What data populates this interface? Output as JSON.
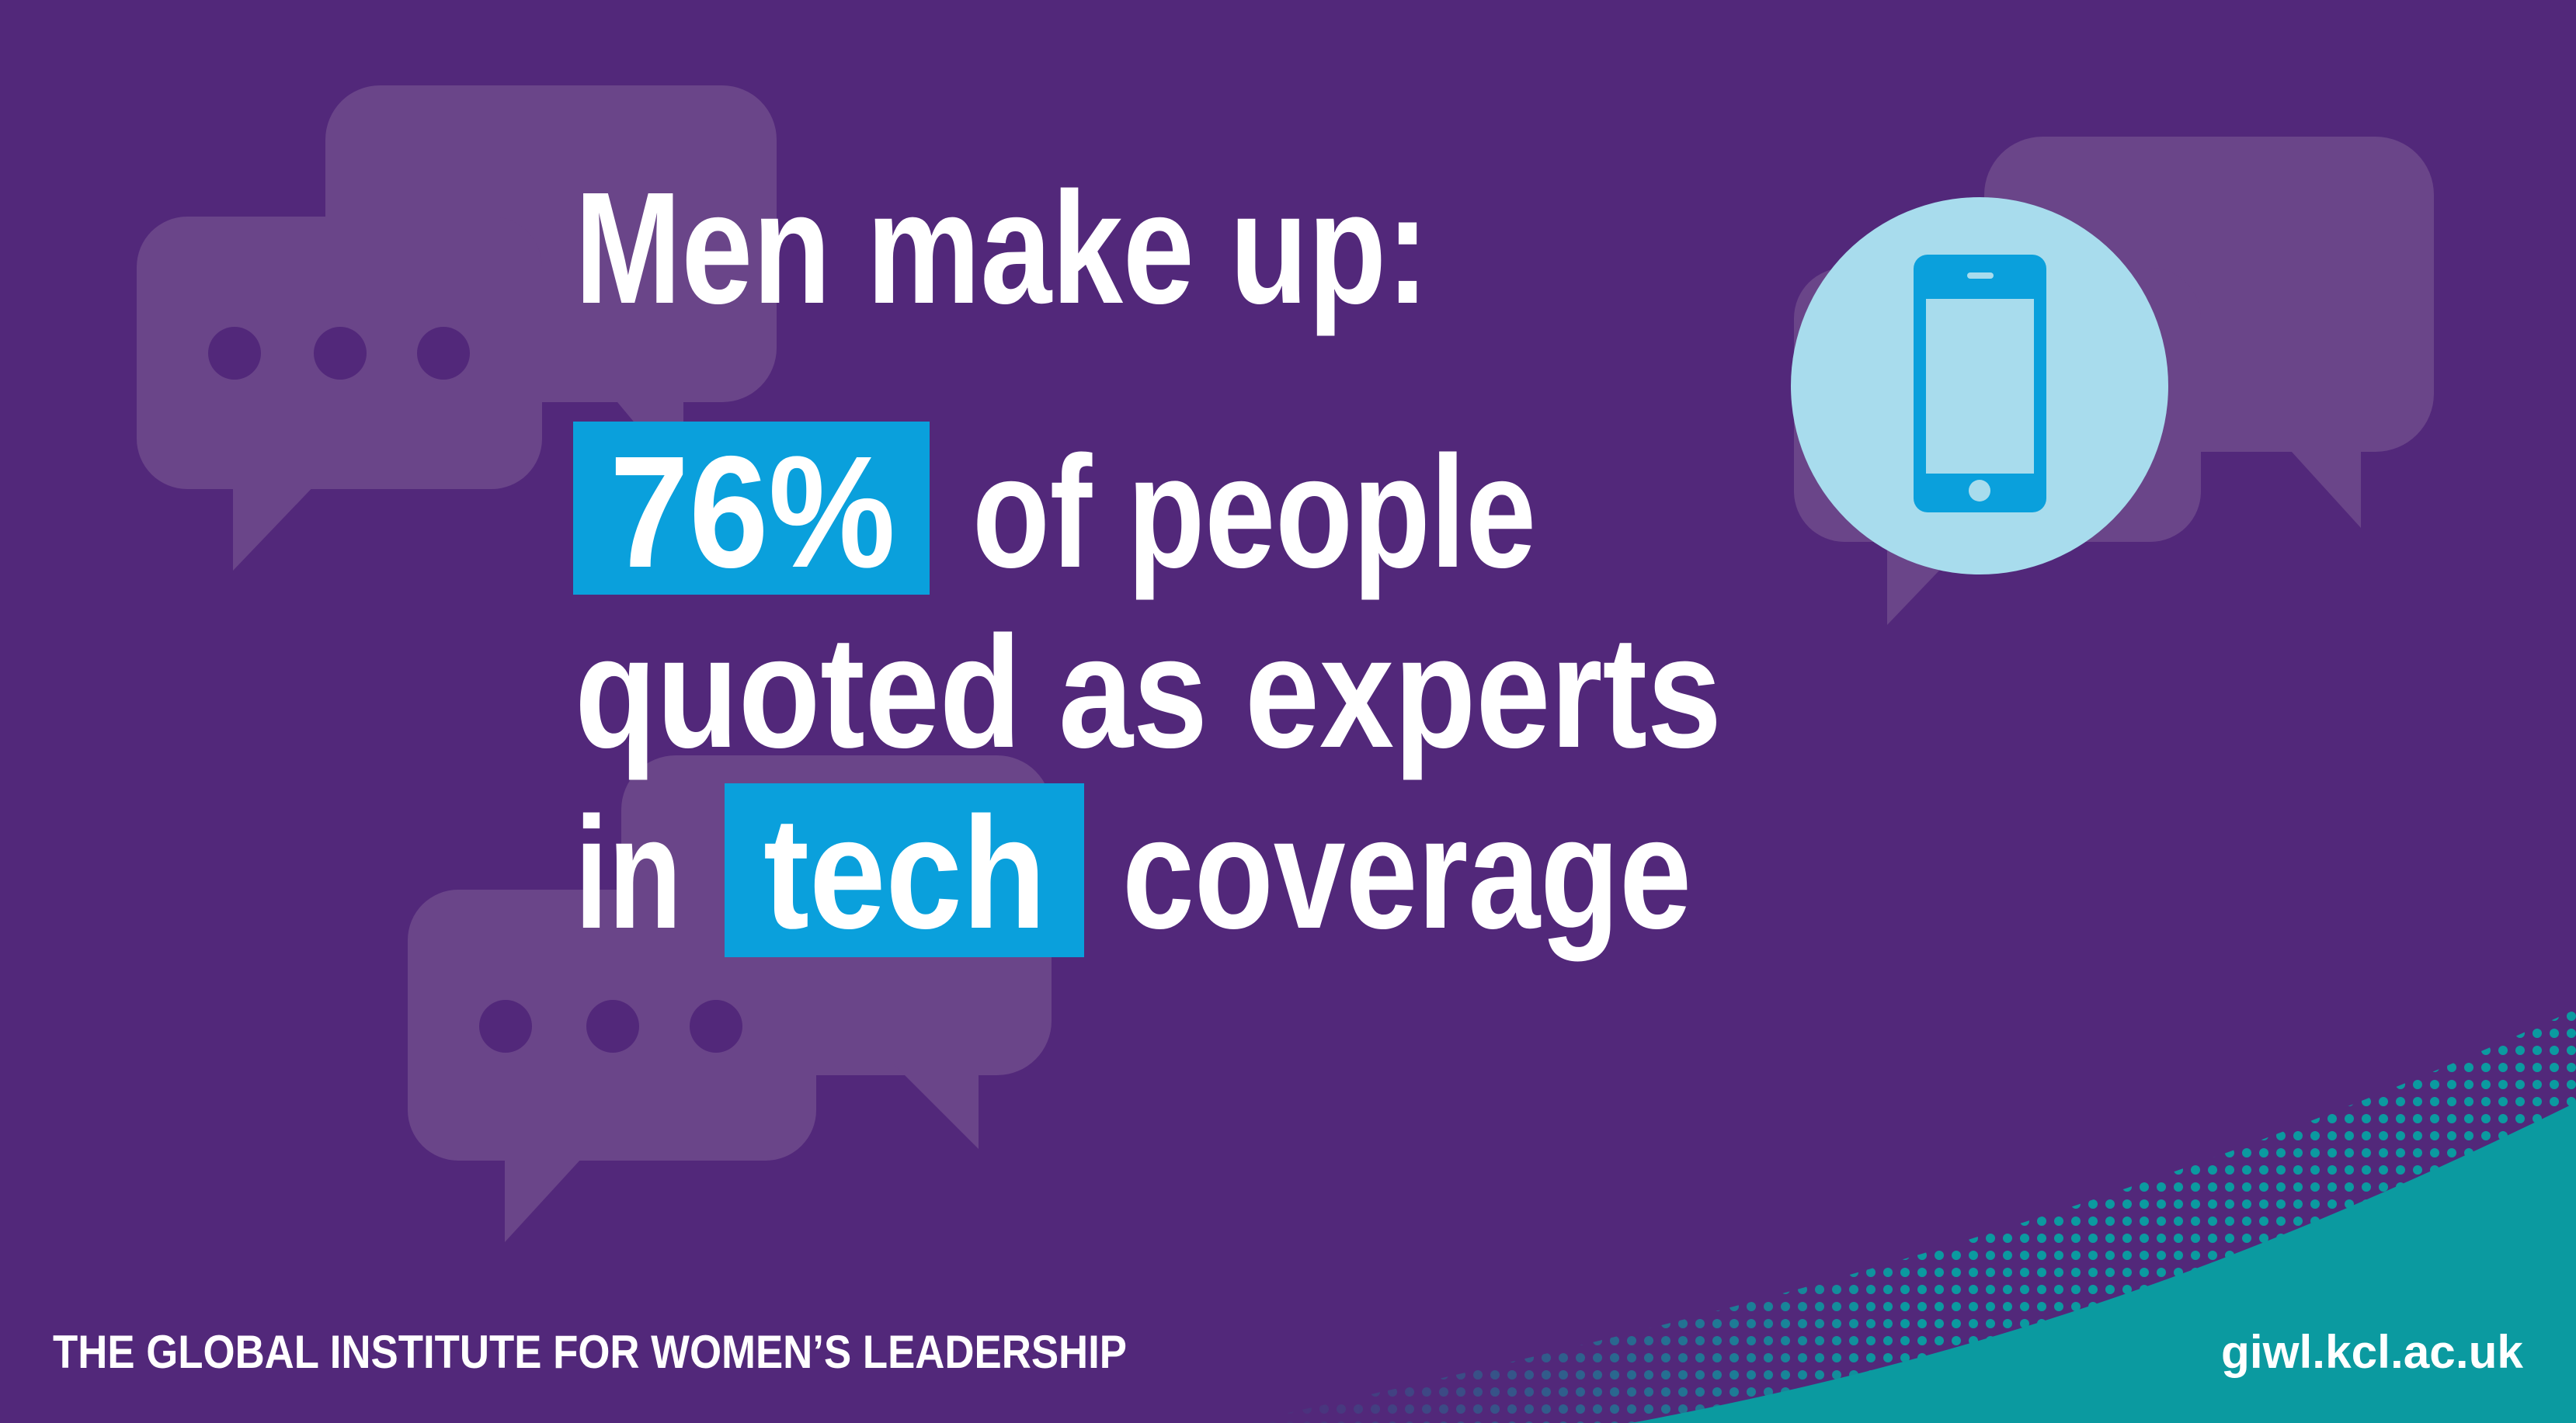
{
  "headline": "Men make up:",
  "statement": {
    "stat": "76%",
    "line1_rest": "of people",
    "line2": "quoted as experts",
    "line3_start": "in",
    "highlight": "tech",
    "line3_end": "coverage"
  },
  "footer": {
    "organization": "THE GLOBAL INSTITUTE FOR WOMEN’S LEADERSHIP",
    "url": "giwl.kcl.ac.uk"
  }
}
